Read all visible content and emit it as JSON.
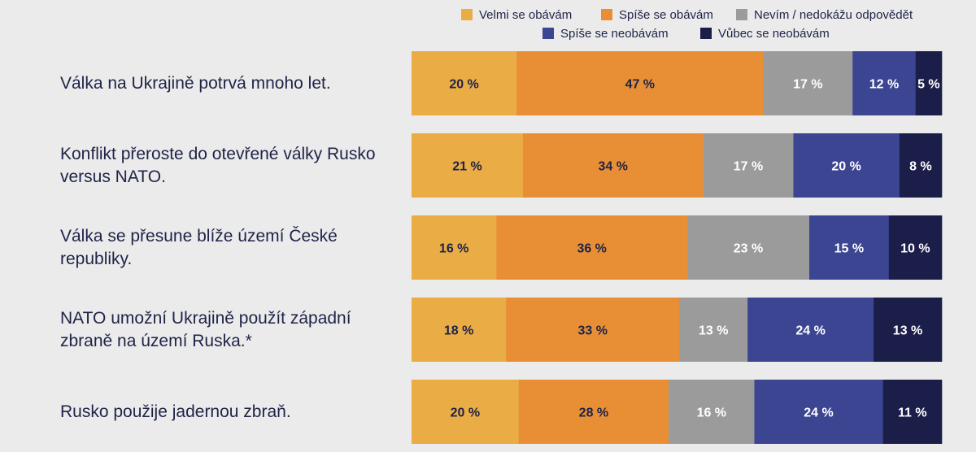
{
  "legend": [
    {
      "name": "Velmi se obávám",
      "color": "#eaac45"
    },
    {
      "name": "Spíše se obávám",
      "color": "#e88f35"
    },
    {
      "name": "Nevím / nedokážu odpovědět",
      "color": "#9b9b9b"
    },
    {
      "name": "Spíše se neobávám",
      "color": "#3b4592"
    },
    {
      "name": "Vůbec se neobávám",
      "color": "#1c1e4a"
    }
  ],
  "chart_data": {
    "type": "bar",
    "orientation": "horizontal",
    "stacked": true,
    "legend_position": "top-right",
    "value_suffix": " %",
    "categories": [
      "Válka na Ukrajině potrvá mnoho let.",
      "Konflikt přeroste do otevřené války Rusko versus NATO.",
      "Válka se přesune blíže území České republiky.",
      "NATO umožní Ukrajině použít západní zbraně na území Ruska.*",
      "Rusko použije jadernou zbraň."
    ],
    "series": [
      {
        "name": "Velmi se obávám",
        "color": "#eaac45",
        "values": [
          20,
          21,
          16,
          18,
          20
        ]
      },
      {
        "name": "Spíše se obávám",
        "color": "#e88f35",
        "values": [
          47,
          34,
          36,
          33,
          28
        ]
      },
      {
        "name": "Nevím / nedokážu odpovědět",
        "color": "#9b9b9b",
        "values": [
          17,
          17,
          23,
          13,
          16
        ]
      },
      {
        "name": "Spíše se neobávám",
        "color": "#3b4592",
        "values": [
          12,
          20,
          15,
          24,
          24
        ]
      },
      {
        "name": "Vůbec se neobávám",
        "color": "#1c1e4a",
        "values": [
          5,
          8,
          10,
          13,
          11
        ]
      }
    ]
  }
}
